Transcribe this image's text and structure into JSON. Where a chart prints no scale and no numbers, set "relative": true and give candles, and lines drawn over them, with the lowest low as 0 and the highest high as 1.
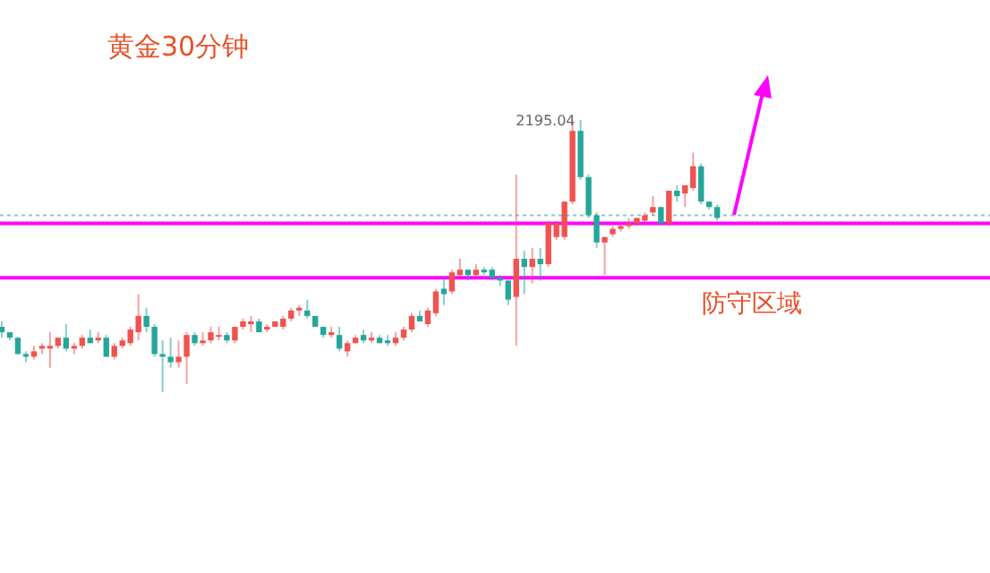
{
  "chart_data": {
    "type": "candlestick",
    "title": "黄金30分钟",
    "relative": true,
    "categories": [
      null,
      null,
      null,
      null,
      null,
      null,
      null,
      null,
      null,
      null,
      null,
      null,
      null,
      null,
      null,
      null,
      null,
      null,
      null,
      null,
      null,
      null,
      null,
      null,
      null,
      null,
      null,
      null,
      null,
      null,
      null,
      null,
      null,
      null,
      null,
      null,
      null,
      null,
      null,
      null,
      null,
      null,
      null,
      null,
      null,
      null,
      null,
      null,
      null,
      null,
      null,
      null,
      null,
      null,
      null,
      null,
      null,
      null,
      null,
      null,
      null,
      null,
      null,
      null,
      null,
      null,
      null,
      null,
      null,
      null,
      null,
      null,
      null,
      null,
      null,
      null,
      null,
      null,
      null,
      null,
      null,
      null,
      null,
      null,
      null,
      null,
      null,
      null,
      null,
      null
    ],
    "ohlc": [
      [
        0.24,
        0.26,
        0.2,
        0.22
      ],
      [
        0.22,
        0.22,
        0.19,
        0.2
      ],
      [
        0.2,
        0.2,
        0.14,
        0.14
      ],
      [
        0.14,
        0.15,
        0.11,
        0.13
      ],
      [
        0.13,
        0.17,
        0.12,
        0.15
      ],
      [
        0.16,
        0.18,
        0.14,
        0.17
      ],
      [
        0.16,
        0.22,
        0.09,
        0.17
      ],
      [
        0.17,
        0.2,
        0.16,
        0.2
      ],
      [
        0.2,
        0.25,
        0.15,
        0.16
      ],
      [
        0.16,
        0.18,
        0.14,
        0.17
      ],
      [
        0.17,
        0.21,
        0.16,
        0.2
      ],
      [
        0.2,
        0.23,
        0.18,
        0.18
      ],
      [
        0.19,
        0.22,
        0.18,
        0.2
      ],
      [
        0.2,
        0.21,
        0.13,
        0.13
      ],
      [
        0.13,
        0.18,
        0.12,
        0.17
      ],
      [
        0.17,
        0.2,
        0.16,
        0.19
      ],
      [
        0.18,
        0.24,
        0.17,
        0.23
      ],
      [
        0.22,
        0.36,
        0.19,
        0.28
      ],
      [
        0.28,
        0.31,
        0.22,
        0.24
      ],
      [
        0.24,
        0.25,
        0.13,
        0.14
      ],
      [
        0.14,
        0.19,
        0,
        0.13
      ],
      [
        0.13,
        0.2,
        0.09,
        0.11
      ],
      [
        0.11,
        0.19,
        0.09,
        0.13
      ],
      [
        0.13,
        0.22,
        0.03,
        0.21
      ],
      [
        0.21,
        0.22,
        0.17,
        0.18
      ],
      [
        0.18,
        0.22,
        0.17,
        0.19
      ],
      [
        0.19,
        0.24,
        0.18,
        0.22
      ],
      [
        0.21,
        0.24,
        0.19,
        0.21
      ],
      [
        0.21,
        0.22,
        0.18,
        0.19
      ],
      [
        0.19,
        0.24,
        0.18,
        0.24
      ],
      [
        0.24,
        0.27,
        0.23,
        0.26
      ],
      [
        0.25,
        0.28,
        0.22,
        0.26
      ],
      [
        0.26,
        0.27,
        0.22,
        0.22
      ],
      [
        0.23,
        0.25,
        0.22,
        0.24
      ],
      [
        0.24,
        0.26,
        0.24,
        0.26
      ],
      [
        0.24,
        0.28,
        0.23,
        0.27
      ],
      [
        0.27,
        0.31,
        0.26,
        0.3
      ],
      [
        0.3,
        0.32,
        0.28,
        0.31
      ],
      [
        0.3,
        0.34,
        0.27,
        0.28
      ],
      [
        0.28,
        0.28,
        0.24,
        0.24
      ],
      [
        0.24,
        0.24,
        0.2,
        0.21
      ],
      [
        0.21,
        0.24,
        0.2,
        0.22
      ],
      [
        0.21,
        0.24,
        0.15,
        0.16
      ],
      [
        0.15,
        0.19,
        0.13,
        0.18
      ],
      [
        0.18,
        0.21,
        0.18,
        0.2
      ],
      [
        0.21,
        0.23,
        0.18,
        0.19
      ],
      [
        0.19,
        0.22,
        0.18,
        0.2
      ],
      [
        0.2,
        0.21,
        0.18,
        0.18
      ],
      [
        0.19,
        0.21,
        0.17,
        0.18
      ],
      [
        0.18,
        0.22,
        0.17,
        0.2
      ],
      [
        0.2,
        0.24,
        0.19,
        0.23
      ],
      [
        0.23,
        0.29,
        0.22,
        0.28
      ],
      [
        0.28,
        0.3,
        0.26,
        0.26
      ],
      [
        0.25,
        0.31,
        0.24,
        0.3
      ],
      [
        0.29,
        0.38,
        0.28,
        0.37
      ],
      [
        0.38,
        0.42,
        0.32,
        0.36
      ],
      [
        0.37,
        0.45,
        0.36,
        0.44
      ],
      [
        0.43,
        0.49,
        0.42,
        0.45
      ],
      [
        0.45,
        0.45,
        0.41,
        0.43
      ],
      [
        0.43,
        0.47,
        0.42,
        0.45
      ],
      [
        0.45,
        0.46,
        0.43,
        0.44
      ],
      [
        0.45,
        0.46,
        0.41,
        0.42
      ],
      [
        0.42,
        0.43,
        0.39,
        0.41
      ],
      [
        0.41,
        0.41,
        0.32,
        0.34
      ],
      [
        0.35,
        0.8,
        0.17,
        0.49
      ],
      [
        0.49,
        0.52,
        0.36,
        0.46
      ],
      [
        0.46,
        0.53,
        0.4,
        0.49
      ],
      [
        0.49,
        0.53,
        0.41,
        0.47
      ],
      [
        0.47,
        0.63,
        0.46,
        0.62
      ],
      [
        0.57,
        0.63,
        0.56,
        0.62
      ],
      [
        0.57,
        0.7,
        0.56,
        0.7
      ],
      [
        0.7,
        0.99,
        0.69,
        0.96
      ],
      [
        0.96,
        1,
        0.78,
        0.79
      ],
      [
        0.79,
        0.8,
        0.64,
        0.65
      ],
      [
        0.65,
        0.66,
        0.53,
        0.55
      ],
      [
        0.55,
        0.57,
        0.43,
        0.57
      ],
      [
        0.58,
        0.61,
        0.57,
        0.6
      ],
      [
        0.6,
        0.62,
        0.59,
        0.61
      ],
      [
        0.61,
        0.64,
        0.6,
        0.62
      ],
      [
        0.62,
        0.64,
        0.61,
        0.64
      ],
      [
        0.63,
        0.66,
        0.62,
        0.65
      ],
      [
        0.66,
        0.72,
        0.65,
        0.68
      ],
      [
        0.68,
        0.68,
        0.62,
        0.62
      ],
      [
        0.62,
        0.74,
        0.61,
        0.74
      ],
      [
        0.74,
        0.76,
        0.7,
        0.72
      ],
      [
        0.73,
        0.76,
        0.68,
        0.76
      ],
      [
        0.75,
        0.88,
        0.74,
        0.83
      ],
      [
        0.83,
        0.84,
        0.69,
        0.7
      ],
      [
        0.7,
        0.7,
        0.67,
        0.68
      ],
      [
        0.68,
        0.69,
        0.63,
        0.64
      ]
    ],
    "ref_lines": [
      {
        "axis": "y",
        "value": 0.65,
        "color": "#80cbc4",
        "line_style": "dotted"
      },
      {
        "axis": "y",
        "value": 0.62,
        "color": "#ff00ff"
      },
      {
        "axis": "y",
        "value": 0.42,
        "color": "#ff00ff",
        "label": "防守区域"
      }
    ],
    "annotations": [
      "2195.04"
    ]
  }
}
